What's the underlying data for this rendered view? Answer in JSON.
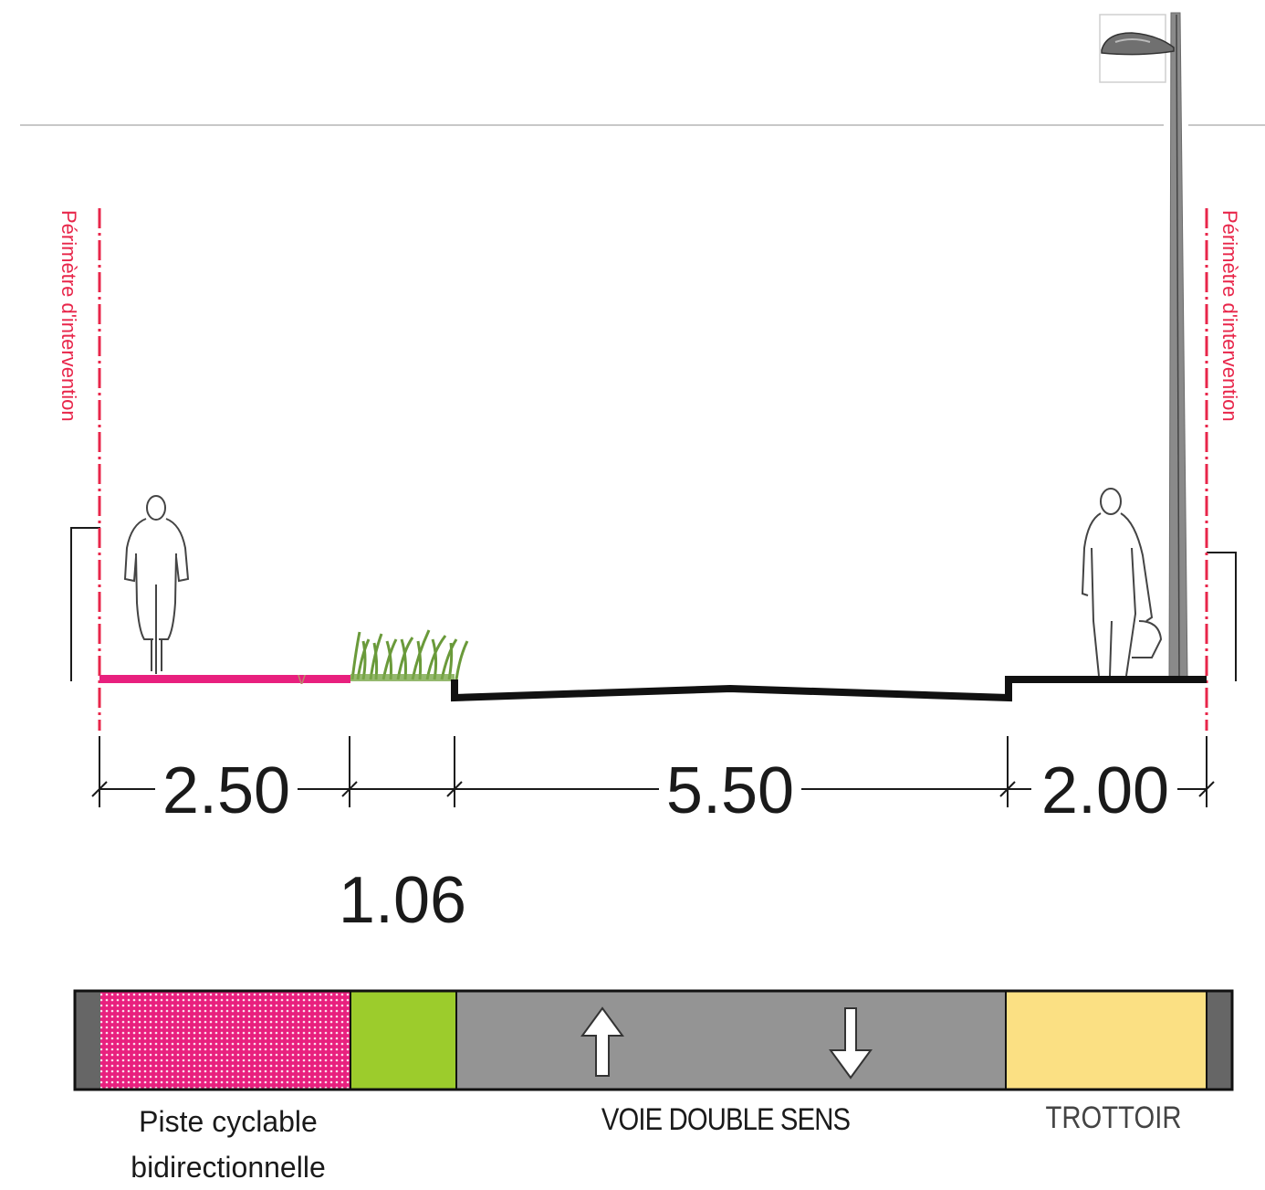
{
  "perimeter_label": "Périmètre d'intervention",
  "dimensions": {
    "cycle_track": "2.50",
    "planting": "1.06",
    "carriageway": "5.50",
    "sidewalk": "2.00"
  },
  "legend": {
    "cycle_track_line1": "Piste cyclable",
    "cycle_track_line2": "bidirectionnelle",
    "carriageway": "VOIE DOUBLE SENS",
    "sidewalk": "TROTTOIR"
  },
  "colors": {
    "cycle_track": "#e8207e",
    "planting": "#9ccc2c",
    "carriageway": "#949494",
    "sidewalk": "#fbe083",
    "perimeter": "#e8264a",
    "edge": "#666666"
  }
}
